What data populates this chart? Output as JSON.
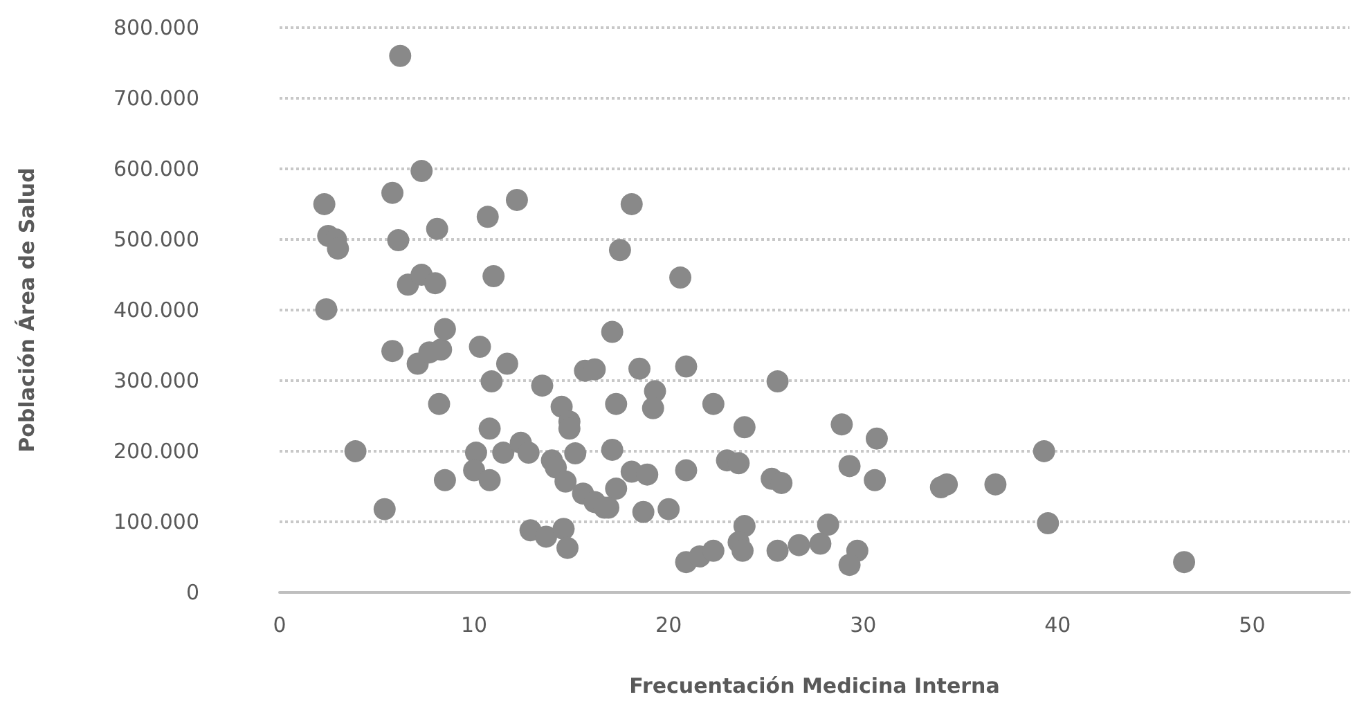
{
  "chart_data": {
    "type": "scatter",
    "xlabel": "Frecuentación Medicina Interna",
    "ylabel": "Población Área de Salud",
    "x": [
      6.2,
      2.3,
      5.8,
      7.3,
      12.2,
      8.1,
      10.7,
      18.1,
      17.5,
      2.5,
      2.9,
      3.0,
      6.1,
      11.0,
      6.6,
      7.3,
      8.0,
      2.4,
      20.6,
      17.1,
      18.5,
      20.9,
      25.6,
      19.3,
      19.2,
      17.3,
      22.3,
      23.9,
      28.9,
      30.7,
      17.1,
      18.1,
      18.9,
      20.9,
      23.0,
      23.6,
      29.3,
      17.3,
      16.9,
      18.7,
      20.0,
      25.3,
      25.8,
      30.6,
      34.0,
      34.3,
      36.8,
      23.9,
      28.2,
      20.9,
      21.6,
      22.3,
      23.6,
      23.8,
      25.6,
      26.7,
      27.8,
      29.7,
      29.3,
      39.3,
      39.5,
      46.5,
      5.8,
      7.1,
      7.7,
      8.3,
      8.5,
      10.3,
      11.7,
      10.9,
      8.2,
      13.5,
      15.7,
      16.2,
      14.5,
      14.9,
      14.9,
      3.9,
      10.8,
      10.1,
      11.5,
      12.4,
      12.8,
      10.0,
      10.8,
      8.5,
      14.0,
      14.2,
      14.7,
      15.2,
      15.6,
      16.2,
      16.7,
      5.4,
      12.9,
      13.7,
      14.6,
      14.8
    ],
    "values": [
      760000,
      550000,
      566000,
      597000,
      556000,
      515000,
      532000,
      550000,
      485000,
      505000,
      500000,
      487000,
      499000,
      448000,
      436000,
      450000,
      438000,
      401000,
      446000,
      369000,
      317000,
      320000,
      299000,
      285000,
      261000,
      267000,
      267000,
      234000,
      238000,
      218000,
      202000,
      171000,
      167000,
      173000,
      187000,
      183000,
      179000,
      147000,
      120000,
      114000,
      118000,
      161000,
      155000,
      159000,
      149000,
      153000,
      153000,
      94000,
      96000,
      43000,
      51000,
      59000,
      71000,
      59000,
      59000,
      67000,
      69000,
      59000,
      39000,
      200000,
      98000,
      43000,
      342000,
      324000,
      340000,
      344000,
      373000,
      348000,
      324000,
      299000,
      267000,
      293000,
      314000,
      316000,
      263000,
      242000,
      232000,
      200000,
      232000,
      198000,
      198000,
      212000,
      198000,
      173000,
      159000,
      159000,
      187000,
      177000,
      157000,
      197000,
      140000,
      128000,
      120000,
      118000,
      88000,
      79000,
      90000,
      63000
    ],
    "color": "#898989",
    "marker": "circle",
    "grid": "y",
    "xlim": [
      0,
      55
    ],
    "xticks": [
      0,
      10,
      20,
      30,
      40,
      50
    ],
    "ylim": [
      0,
      800000
    ],
    "yticks": [
      0,
      {
        "value": 100000,
        "label": "100.000"
      },
      {
        "value": 200000,
        "label": "200.000"
      },
      {
        "value": 300000,
        "label": "300.000"
      },
      {
        "value": 400000,
        "label": "400.000"
      },
      {
        "value": 500000,
        "label": "500.000"
      },
      {
        "value": 600000,
        "label": "600.000"
      },
      {
        "value": 700000,
        "label": "700.000"
      },
      {
        "value": 800000,
        "label": "800.000"
      }
    ]
  }
}
